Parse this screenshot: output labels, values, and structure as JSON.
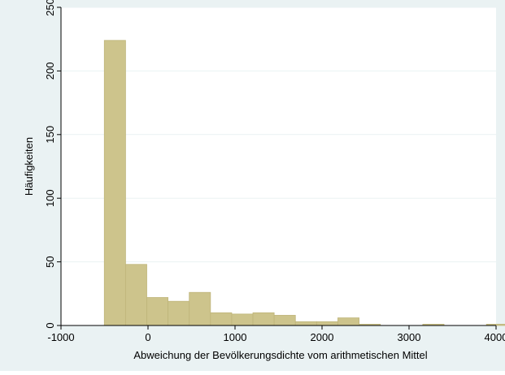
{
  "chart_data": {
    "type": "bar",
    "title": "",
    "xlabel": "Abweichung der Bevölkerungsdichte vom arithmetischen Mittel",
    "ylabel": "Häufigkeiten",
    "xlim": [
      -1000,
      4000
    ],
    "ylim": [
      0,
      250
    ],
    "x_ticks": [
      "-1000",
      "0",
      "1000",
      "2000",
      "3000",
      "4000"
    ],
    "y_ticks": [
      "0",
      "50",
      "100",
      "150",
      "200",
      "250"
    ],
    "grid": true,
    "bin_width": 244,
    "bin_edges": [
      -502,
      -258,
      -14,
      230,
      474,
      718,
      962,
      1206,
      1450,
      1694,
      1938,
      2182,
      2426,
      2670,
      2914,
      3158,
      3402,
      3646,
      3890
    ],
    "values": [
      224,
      48,
      22,
      19,
      26,
      10,
      9,
      10,
      8,
      3,
      3,
      6,
      1,
      0,
      0,
      1,
      0,
      0,
      1
    ],
    "colors": {
      "bar_fill": "#cdc48c",
      "bar_stroke": "#bfb57a",
      "plot_bg": "#ffffff",
      "frame_bg": "#eaf2f3",
      "grid": "#eaf2f3"
    }
  }
}
